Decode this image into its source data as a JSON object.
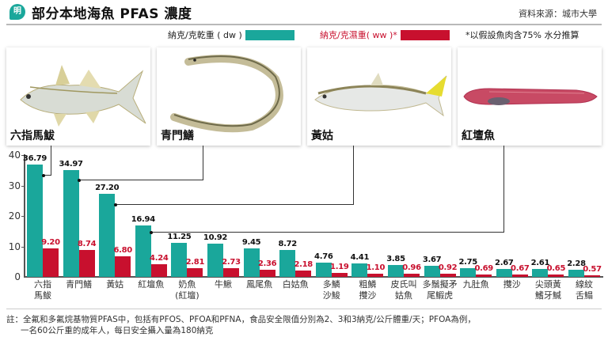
{
  "header": {
    "logo_text": "明",
    "title": "部分本地海魚 PFAS 濃度",
    "source": "資料來源：城市大學"
  },
  "legend": {
    "dw_label": "納克/克乾重 ( dw )",
    "ww_label": "納克/克濕重( ww )*",
    "note": "*以假設魚肉含75% 水分推算",
    "colors": {
      "dw": "#1aa79b",
      "ww": "#c8102e"
    }
  },
  "photos": [
    {
      "label": "六指馬鮁"
    },
    {
      "label": "青門鱔"
    },
    {
      "label": "黃姑"
    },
    {
      "label": "紅壇魚"
    }
  ],
  "chart_data": {
    "type": "bar",
    "title": "部分本地海魚 PFAS 濃度",
    "xlabel": "",
    "ylabel": "",
    "ylim": [
      0,
      40
    ],
    "yticks": [
      "0",
      "10",
      "20",
      "30",
      "40"
    ],
    "grid": false,
    "legend_position": "top",
    "categories": [
      "六指馬鮁",
      "青門鱔",
      "黃姑",
      "紅壇魚",
      "奶魚(紅壇)",
      "牛鰍",
      "鳳尾魚",
      "白姑魚",
      "多鱗沙鮻",
      "粗鱗㩳沙",
      "皮氏叫姑魚",
      "多鬚擬矛尾鰕虎",
      "九肚魚",
      "㩳沙",
      "尖頭黃鰭牙鰔",
      "線紋舌鰨"
    ],
    "series": [
      {
        "name": "納克/克乾重 ( dw )",
        "color": "#1aa79b",
        "values": [
          36.79,
          34.97,
          27.2,
          16.94,
          11.25,
          10.92,
          9.45,
          8.72,
          4.76,
          4.41,
          3.85,
          3.67,
          2.75,
          2.67,
          2.61,
          2.28
        ]
      },
      {
        "name": "納克/克濕重( ww )*",
        "color": "#c8102e",
        "values": [
          9.2,
          8.74,
          6.8,
          4.24,
          2.81,
          2.73,
          2.36,
          2.18,
          1.19,
          1.1,
          0.96,
          0.92,
          0.69,
          0.67,
          0.65,
          0.57
        ]
      }
    ],
    "annotations": [
      "*以假設魚肉含75% 水分推算"
    ]
  },
  "chart_display": {
    "cat_lines": [
      [
        "六指",
        "馬鮁"
      ],
      [
        "青門鱔",
        ""
      ],
      [
        "黃姑",
        ""
      ],
      [
        "紅壇魚",
        ""
      ],
      [
        "奶魚",
        "(紅壇)"
      ],
      [
        "牛鰍",
        ""
      ],
      [
        "鳳尾魚",
        ""
      ],
      [
        "白姑魚",
        ""
      ],
      [
        "多鱗",
        "沙鮻"
      ],
      [
        "粗鱗",
        "㩳沙"
      ],
      [
        "皮氏叫",
        "姑魚"
      ],
      [
        "多鬚擬矛",
        "尾鰕虎"
      ],
      [
        "九肚魚",
        ""
      ],
      [
        "㩳沙",
        ""
      ],
      [
        "尖頭黃",
        "鰭牙鰔"
      ],
      [
        "線紋",
        "舌鰨"
      ]
    ],
    "dw_labels": [
      "36.79",
      "34.97",
      "27.20",
      "16.94",
      "11.25",
      "10.92",
      "9.45",
      "8.72",
      "4.76",
      "4.41",
      "3.85",
      "3.67",
      "2.75",
      "2.67",
      "2.61",
      "2.28"
    ],
    "ww_labels": [
      "9.20",
      "8.74",
      "6.80",
      "4.24",
      "2.81",
      "2.73",
      "2.36",
      "2.18",
      "1.19",
      "1.10",
      "0.96",
      "0.92",
      "0.69",
      "0.67",
      "0.65",
      "0.57"
    ]
  },
  "footnote": {
    "line1": "註：全氟和多氟烷基物質PFAS中，包括有PFOS、PFOA和PFNA，食品安全限值分別為2、3和3納克/公斤體重/天；PFOA為例，",
    "line2": "一名60公斤重的成年人，每日安全攝入量為180納克"
  }
}
